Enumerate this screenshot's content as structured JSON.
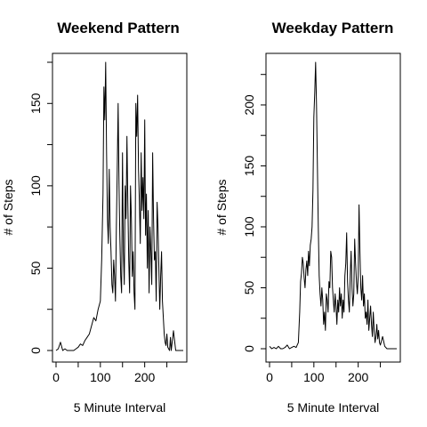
{
  "chart_data": [
    {
      "type": "line",
      "title": "Weekend Pattern",
      "xlabel": "5 Minute Interval",
      "ylabel": "# of Steps",
      "xlim": [
        0,
        287
      ],
      "ylim": [
        0,
        175
      ],
      "xticks": [
        0,
        100,
        200
      ],
      "yticks": [
        0,
        50,
        100,
        150
      ],
      "grid": false,
      "line_color": "#000000",
      "series": [
        {
          "x": [
            0,
            5,
            10,
            15,
            20,
            25,
            30,
            35,
            40,
            45,
            50,
            55,
            60,
            65,
            70,
            75,
            80,
            85,
            90,
            95,
            100,
            103,
            106,
            108,
            110,
            112,
            114,
            116,
            118,
            120,
            122,
            124,
            126,
            128,
            130,
            132,
            134,
            136,
            138,
            140,
            142,
            144,
            146,
            148,
            150,
            152,
            154,
            156,
            158,
            160,
            162,
            164,
            166,
            168,
            170,
            172,
            174,
            176,
            178,
            180,
            182,
            184,
            186,
            188,
            190,
            192,
            194,
            196,
            198,
            200,
            202,
            204,
            206,
            208,
            210,
            212,
            214,
            216,
            218,
            220,
            222,
            224,
            226,
            228,
            230,
            232,
            234,
            236,
            238,
            240,
            242,
            244,
            246,
            248,
            250,
            252,
            254,
            256,
            258,
            260,
            265,
            270,
            275,
            280,
            285,
            287
          ],
          "y": [
            0,
            1,
            5,
            0,
            1,
            0,
            0,
            0,
            0,
            1,
            2,
            4,
            3,
            6,
            8,
            10,
            15,
            20,
            18,
            25,
            30,
            55,
            95,
            160,
            140,
            175,
            120,
            80,
            65,
            110,
            75,
            60,
            40,
            35,
            55,
            45,
            30,
            75,
            110,
            150,
            100,
            70,
            45,
            35,
            120,
            60,
            40,
            100,
            80,
            130,
            90,
            55,
            35,
            100,
            80,
            45,
            60,
            35,
            25,
            150,
            130,
            155,
            110,
            90,
            65,
            120,
            85,
            105,
            80,
            140,
            70,
            95,
            50,
            85,
            35,
            75,
            60,
            40,
            120,
            80,
            55,
            60,
            30,
            90,
            75,
            50,
            25,
            45,
            60,
            30,
            20,
            10,
            5,
            3,
            10,
            2,
            1,
            0,
            8,
            0,
            12,
            0,
            0,
            0,
            0,
            0
          ]
        }
      ]
    },
    {
      "type": "line",
      "title": "Weekday Pattern",
      "xlabel": "5 Minute Interval",
      "ylabel": "# of Steps",
      "xlim": [
        0,
        287
      ],
      "ylim": [
        0,
        235
      ],
      "xticks": [
        0,
        100,
        200
      ],
      "yticks": [
        0,
        50,
        100,
        150,
        200
      ],
      "grid": false,
      "line_color": "#000000",
      "series": [
        {
          "x": [
            0,
            5,
            10,
            15,
            20,
            25,
            30,
            35,
            40,
            45,
            50,
            55,
            60,
            65,
            68,
            70,
            72,
            74,
            76,
            78,
            80,
            82,
            84,
            86,
            88,
            90,
            92,
            94,
            96,
            98,
            100,
            102,
            104,
            106,
            108,
            110,
            112,
            114,
            116,
            118,
            120,
            122,
            124,
            126,
            128,
            130,
            132,
            134,
            136,
            138,
            140,
            142,
            144,
            146,
            148,
            150,
            152,
            154,
            156,
            158,
            160,
            162,
            164,
            166,
            168,
            170,
            172,
            174,
            176,
            178,
            180,
            182,
            184,
            186,
            188,
            190,
            192,
            194,
            196,
            198,
            200,
            202,
            204,
            206,
            208,
            210,
            212,
            214,
            216,
            218,
            220,
            222,
            224,
            226,
            228,
            230,
            232,
            234,
            236,
            238,
            240,
            242,
            244,
            246,
            248,
            250,
            255,
            260,
            265,
            270,
            275,
            280,
            285,
            287
          ],
          "y": [
            2,
            0,
            1,
            0,
            2,
            0,
            0,
            1,
            3,
            0,
            1,
            2,
            1,
            5,
            30,
            55,
            62,
            75,
            70,
            58,
            50,
            65,
            72,
            60,
            80,
            68,
            85,
            90,
            100,
            130,
            190,
            210,
            235,
            200,
            150,
            100,
            60,
            45,
            35,
            50,
            40,
            20,
            30,
            15,
            45,
            40,
            30,
            55,
            50,
            80,
            75,
            50,
            40,
            30,
            45,
            35,
            20,
            40,
            30,
            50,
            35,
            45,
            25,
            40,
            30,
            60,
            70,
            95,
            55,
            40,
            30,
            60,
            80,
            50,
            35,
            45,
            90,
            70,
            55,
            45,
            60,
            118,
            80,
            50,
            40,
            60,
            35,
            45,
            25,
            30,
            20,
            40,
            15,
            25,
            35,
            20,
            10,
            30,
            15,
            5,
            10,
            20,
            8,
            15,
            5,
            3,
            10,
            2,
            0,
            0,
            0,
            0,
            0,
            0
          ]
        }
      ]
    }
  ]
}
